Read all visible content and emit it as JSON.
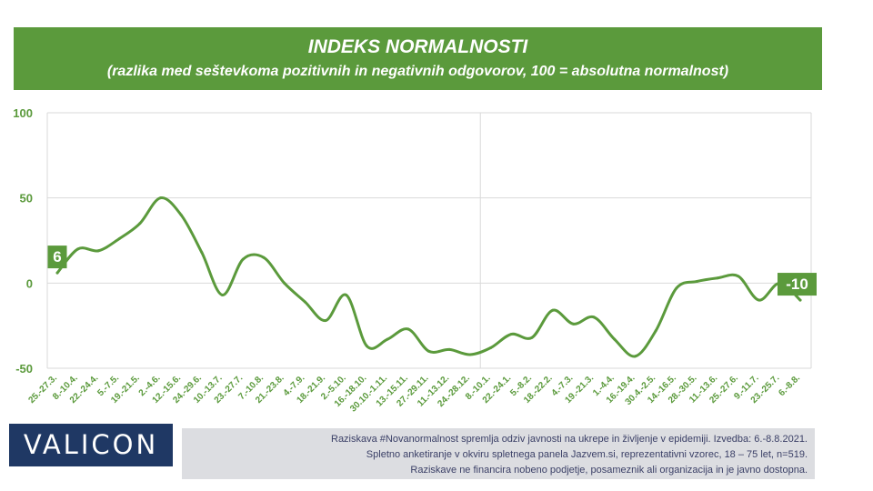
{
  "header": {
    "title": "INDEKS NORMALNOSTI",
    "subtitle": "(razlika med seštevkoma pozitivnih in negativnih odgovorov, 100 = absolutna normalnost)"
  },
  "chart_data": {
    "type": "line",
    "title": "INDEKS NORMALNOSTI",
    "subtitle": "(razlika med seštevkoma pozitivnih in negativnih odgovorov, 100 = absolutna normalnost)",
    "categories": [
      "25.-27.3.",
      "8.-10.4.",
      "22.-24.4.",
      "5.-7.5.",
      "19.-21.5.",
      "2.-4.6.",
      "12.-15.6.",
      "24.-29.6.",
      "10.-13.7.",
      "23.-27.7.",
      "7.-10.8.",
      "21.-23.8.",
      "4.-7.9.",
      "18.-21.9.",
      "2.-5.10.",
      "16.-18.10.",
      "30.10.-1.11.",
      "13.-15.11.",
      "27.-29.11.",
      "11.-13.12.",
      "24.-28.12.",
      "8.-10.1.",
      "22.-24.1.",
      "5.-8.2.",
      "18.-22.2.",
      "4.-7.3.",
      "19.-21.3.",
      "1.-4.4.",
      "16.-19.4.",
      "30.4.-2.5.",
      "14.-16.5.",
      "28.-30.5.",
      "11.-13.6.",
      "25.-27.6.",
      "9.-11.7.",
      "23.-25.7.",
      "6.-8.8."
    ],
    "values": [
      6,
      20,
      19,
      26,
      35,
      50,
      40,
      18,
      -7,
      14,
      15,
      0,
      -11,
      -22,
      -7,
      -37,
      -33,
      -27,
      -40,
      -39,
      -42,
      -38,
      -30,
      -32,
      -16,
      -24,
      -20,
      -33,
      -43,
      -28,
      -3,
      1,
      3,
      4,
      -10,
      0,
      -10
    ],
    "ylim": [
      -50,
      100
    ],
    "yticks": [
      -50,
      0,
      50,
      100
    ],
    "grid": true,
    "divider_after": "24.-28.12.",
    "data_labels": [
      {
        "category": "25.-27.3.",
        "text": "6"
      },
      {
        "category": "6.-8.8.",
        "text": "-10"
      }
    ],
    "line_color": "#5b9a3c",
    "label_color": "#5b9a3c"
  },
  "footer": {
    "logo": "VALICON",
    "notes": [
      "Raziskava #Novanormalnost spremlja odziv javnosti na ukrepe in življenje v epidemiji. Izvedba: 6.-8.8.2021.",
      "Spletno anketiranje v okviru spletnega panela Jazvem.si, reprezentativni vzorec, 18 – 75 let, n=519.",
      "Raziskave ne financira nobeno podjetje, posameznik ali organizacija in je javno dostopna."
    ]
  }
}
